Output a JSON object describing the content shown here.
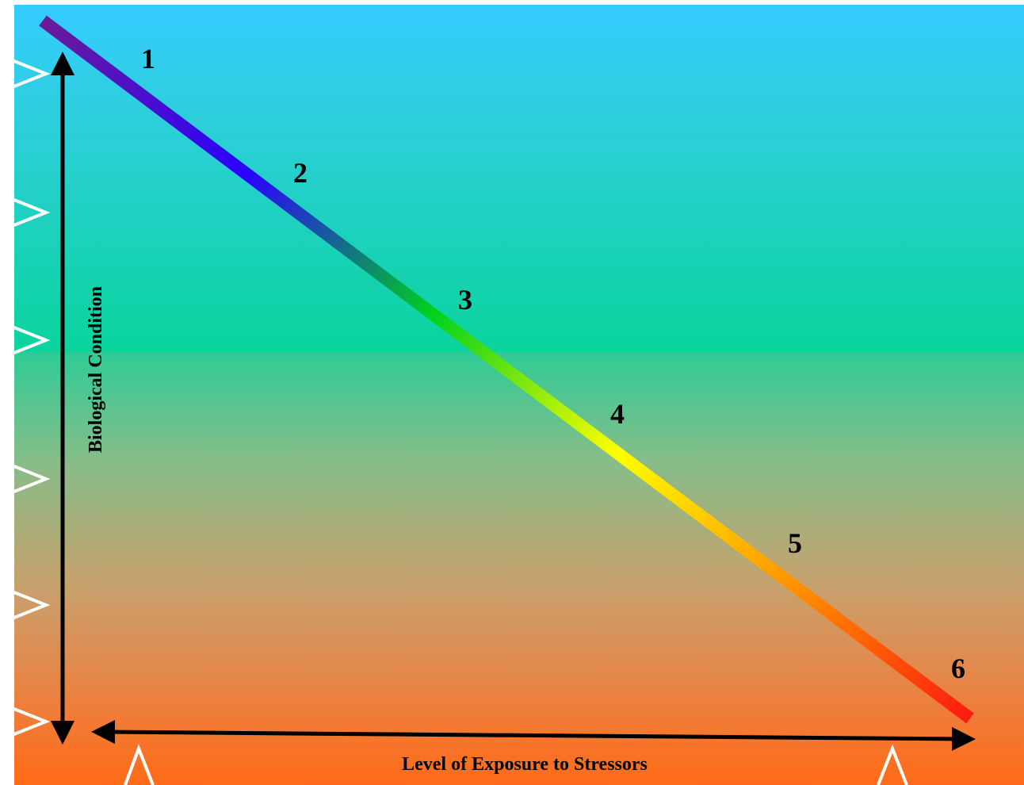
{
  "diagram": {
    "stages": [
      "1",
      "2",
      "3",
      "4",
      "5",
      "6"
    ],
    "y_axis_label": "Biological Condition",
    "x_axis_label": "Level of Exposure to Stressors",
    "gradient_line_colors": [
      "#6a1b9a",
      "#2b00ff",
      "#00d11e",
      "#ffff00",
      "#ff8c00",
      "#ff1a10"
    ],
    "background_colors": [
      "#36ccff",
      "#0ad49c",
      "#ff6b17"
    ],
    "marker_shape": "white-chevron"
  }
}
